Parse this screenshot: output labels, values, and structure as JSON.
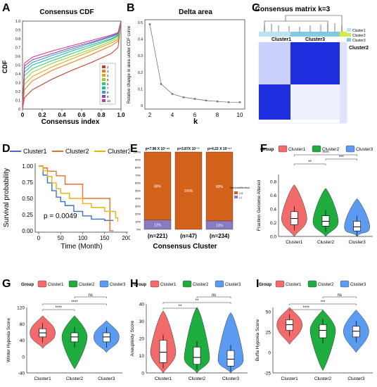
{
  "panels": {
    "A": {
      "letter": "A",
      "title": "Consensus CDF",
      "xlabel": "Consensus index",
      "ylabel": "CDF",
      "xticks": [
        "0",
        "0.2",
        "0.4",
        "0.6",
        "0.8",
        "1.0"
      ],
      "yticks": [
        "0",
        "0.1",
        "0.2",
        "0.3",
        "0.4",
        "0.5",
        "0.6",
        "0.7",
        "0.8",
        "0.9",
        "1.0"
      ]
    },
    "B": {
      "letter": "B",
      "title": "Delta area",
      "xlabel": "k",
      "ylabel": "Relative change in area under CDF curve",
      "xticks": [
        "2",
        "4",
        "6",
        "8",
        "10"
      ],
      "yticks": [
        "0",
        "0.1",
        "0.2",
        "0.3",
        "0.4",
        "0.5"
      ]
    },
    "C": {
      "letter": "C",
      "title": "Consensus matrix k=3",
      "label1": "Cluster1",
      "label2": "Cluster3",
      "label3": "Cluster2"
    },
    "D": {
      "letter": "D",
      "xlabel": "Time (Month)",
      "ylabel": "Survival probability",
      "pvalue": "p = 0.0049",
      "xticks": [
        "0",
        "50",
        "100",
        "150",
        "200"
      ],
      "yticks": [
        "0.00",
        "0.25",
        "0.50",
        "0.75",
        "1.00"
      ]
    },
    "E": {
      "letter": "E",
      "xlabel": "Consensus Cluster",
      "legend_title": "Immunofiltration",
      "yticks": [
        "0%",
        "10%",
        "20%",
        "30%",
        "40%",
        "50%",
        "60%",
        "70%",
        "80%",
        "90%",
        "100%"
      ]
    },
    "F": {
      "letter": "F",
      "ylabel": "Fraction Genome Altered",
      "yticks": [
        "0.0",
        "0.2",
        "0.4",
        "0.6",
        "0.8"
      ]
    },
    "G": {
      "letter": "G",
      "ylabel": "Winter Hypoxia Score",
      "yticks": [
        "-40",
        "0",
        "40",
        "80",
        "120"
      ]
    },
    "H": {
      "letter": "H",
      "ylabel": "Aneuploidy Score",
      "yticks": [
        "0",
        "10",
        "20",
        "30",
        "40"
      ]
    },
    "I": {
      "letter": "I",
      "ylabel": "Buffa Hypoxia Score",
      "yticks": [
        "-25",
        "0",
        "25",
        "50"
      ]
    }
  },
  "group_legend": {
    "title": "Group",
    "items": [
      "Cluster1",
      "Cluster2",
      "Cluster3"
    ]
  },
  "colors": {
    "cluster1": "#f26b6b",
    "cluster2": "#1fad3f",
    "cluster3": "#5b9cf2",
    "km1": "#3b6fc9",
    "km2": "#e8702a",
    "km3": "#e8b20f",
    "bar_top": "#d2611a",
    "bar_bottom": "#8a7ac0",
    "heat": "#1f2fe0"
  },
  "chart_data": [
    {
      "panel": "A",
      "type": "line",
      "title": "Consensus CDF",
      "xlabel": "Consensus index",
      "ylabel": "CDF",
      "xlim": [
        0,
        1
      ],
      "ylim": [
        0,
        1
      ],
      "legend": [
        "2",
        "3",
        "4",
        "5",
        "6",
        "7",
        "8",
        "9",
        "10"
      ],
      "legend_colors": [
        "#c0392b",
        "#e67e22",
        "#d4ac0d",
        "#9acd32",
        "#2ecc71",
        "#1abc9c",
        "#3498db",
        "#8e44ad",
        "#d63384"
      ],
      "series": [
        {
          "name": "2",
          "x": [
            0,
            0.02,
            0.1,
            0.3,
            0.5,
            0.7,
            0.9,
            0.97,
            1
          ],
          "y": [
            0,
            0.13,
            0.22,
            0.34,
            0.44,
            0.53,
            0.63,
            0.7,
            1
          ]
        },
        {
          "name": "3",
          "x": [
            0,
            0.02,
            0.1,
            0.3,
            0.5,
            0.7,
            0.9,
            0.97,
            1
          ],
          "y": [
            0,
            0.22,
            0.32,
            0.44,
            0.53,
            0.62,
            0.72,
            0.77,
            1
          ]
        },
        {
          "name": "4",
          "x": [
            0,
            0.02,
            0.1,
            0.3,
            0.5,
            0.7,
            0.9,
            0.97,
            1
          ],
          "y": [
            0,
            0.28,
            0.37,
            0.48,
            0.57,
            0.66,
            0.75,
            0.79,
            1
          ]
        },
        {
          "name": "5",
          "x": [
            0,
            0.02,
            0.1,
            0.3,
            0.5,
            0.7,
            0.9,
            0.97,
            1
          ],
          "y": [
            0,
            0.33,
            0.42,
            0.52,
            0.6,
            0.68,
            0.77,
            0.81,
            1
          ]
        },
        {
          "name": "6",
          "x": [
            0,
            0.02,
            0.1,
            0.3,
            0.5,
            0.7,
            0.9,
            0.97,
            1
          ],
          "y": [
            0,
            0.38,
            0.46,
            0.55,
            0.63,
            0.71,
            0.79,
            0.83,
            1
          ]
        },
        {
          "name": "7",
          "x": [
            0,
            0.02,
            0.1,
            0.3,
            0.5,
            0.7,
            0.9,
            0.97,
            1
          ],
          "y": [
            0,
            0.42,
            0.5,
            0.58,
            0.66,
            0.73,
            0.8,
            0.84,
            1
          ]
        },
        {
          "name": "8",
          "x": [
            0,
            0.02,
            0.1,
            0.3,
            0.5,
            0.7,
            0.9,
            0.97,
            1
          ],
          "y": [
            0,
            0.46,
            0.53,
            0.61,
            0.68,
            0.75,
            0.82,
            0.85,
            1
          ]
        },
        {
          "name": "9",
          "x": [
            0,
            0.02,
            0.1,
            0.3,
            0.5,
            0.7,
            0.9,
            0.97,
            1
          ],
          "y": [
            0,
            0.49,
            0.56,
            0.63,
            0.7,
            0.76,
            0.83,
            0.86,
            1
          ]
        },
        {
          "name": "10",
          "x": [
            0,
            0.02,
            0.1,
            0.3,
            0.5,
            0.7,
            0.9,
            0.97,
            1
          ],
          "y": [
            0,
            0.52,
            0.59,
            0.66,
            0.72,
            0.78,
            0.84,
            0.87,
            1
          ]
        }
      ]
    },
    {
      "panel": "B",
      "type": "line",
      "title": "Delta area",
      "xlabel": "k",
      "ylabel": "Relative change in area under CDF curve",
      "xlim": [
        2,
        10
      ],
      "ylim": [
        0,
        0.5
      ],
      "x": [
        2,
        3,
        4,
        5,
        6,
        7,
        8,
        9,
        10
      ],
      "y": [
        0.49,
        0.13,
        0.07,
        0.05,
        0.04,
        0.03,
        0.025,
        0.02,
        0.02
      ]
    },
    {
      "panel": "C",
      "type": "heatmap",
      "title": "Consensus matrix k=3",
      "legend": [
        "Cluster1",
        "Cluster2",
        "Cluster3"
      ]
    },
    {
      "panel": "D",
      "type": "line",
      "xlabel": "Time (Month)",
      "ylabel": "Survival probability",
      "legend": [
        "Cluster1",
        "Cluster2",
        "Cluster3"
      ],
      "annotation": "p = 0.0049",
      "xlim": [
        0,
        200
      ],
      "ylim": [
        0,
        1
      ],
      "series": [
        {
          "name": "Cluster1",
          "x": [
            0,
            10,
            20,
            30,
            40,
            50,
            60,
            80,
            100,
            120,
            150,
            170
          ],
          "y": [
            1,
            0.86,
            0.74,
            0.62,
            0.52,
            0.45,
            0.39,
            0.3,
            0.23,
            0.18,
            0.16,
            0.16
          ]
        },
        {
          "name": "Cluster2",
          "x": [
            0,
            10,
            20,
            40,
            60,
            100,
            150,
            160,
            162,
            170
          ],
          "y": [
            1,
            0.97,
            0.92,
            0.85,
            0.72,
            0.5,
            0.5,
            0.5,
            0.0,
            0.0
          ]
        },
        {
          "name": "Cluster3",
          "x": [
            0,
            10,
            20,
            30,
            40,
            50,
            70,
            100,
            120,
            150,
            175,
            180
          ],
          "y": [
            1,
            0.93,
            0.84,
            0.74,
            0.65,
            0.58,
            0.5,
            0.42,
            0.36,
            0.3,
            0.2,
            0.14
          ]
        }
      ]
    },
    {
      "panel": "E",
      "type": "bar",
      "xlabel": "Consensus Cluster",
      "legend": [
        "I-H",
        "I-L"
      ],
      "categories": [
        "(n=221)",
        "(n=47)",
        "(n=234)"
      ],
      "pvalues": [
        "p=7.96 X 10⁻⁴⁶",
        "p=3.87X 10⁻¹¹",
        "p=4.22 X 10⁻⁵³"
      ],
      "series": [
        {
          "name": "I-H",
          "values": [
            88,
            100,
            89
          ],
          "labels": [
            "88%",
            "100%",
            "89%"
          ]
        },
        {
          "name": "I-L",
          "values": [
            12,
            0,
            11
          ],
          "labels": [
            "12%",
            "",
            "11%"
          ]
        }
      ]
    },
    {
      "panel": "F",
      "type": "violin",
      "ylabel": "Fraction Genome Altered",
      "categories": [
        "Cluster1",
        "Cluster2",
        "Cluster3"
      ],
      "ylim": [
        0,
        0.9
      ],
      "medians": [
        0.26,
        0.22,
        0.14
      ],
      "q1": [
        0.17,
        0.15,
        0.08
      ],
      "q3": [
        0.36,
        0.3,
        0.22
      ],
      "min": [
        0.0,
        0.0,
        0.0
      ],
      "max": [
        0.75,
        0.7,
        0.55
      ],
      "significance": [
        "**",
        "****",
        "***"
      ]
    },
    {
      "panel": "G",
      "type": "violin",
      "ylabel": "Winter Hypoxia Score",
      "categories": [
        "Cluster1",
        "Cluster2",
        "Cluster3"
      ],
      "ylim": [
        -40,
        120
      ],
      "medians": [
        58,
        48,
        48
      ],
      "q1": [
        48,
        36,
        36
      ],
      "q3": [
        68,
        58,
        58
      ],
      "min": [
        20,
        -30,
        10
      ],
      "max": [
        100,
        100,
        88
      ],
      "significance": [
        "****",
        "****",
        "ns"
      ]
    },
    {
      "panel": "H",
      "type": "violin",
      "ylabel": "Aneuploidy Score",
      "categories": [
        "Cluster1",
        "Cluster2",
        "Cluster3"
      ],
      "ylim": [
        0,
        40
      ],
      "medians": [
        12,
        9,
        8
      ],
      "q1": [
        6,
        5,
        4
      ],
      "q3": [
        19,
        15,
        13
      ],
      "min": [
        0,
        0,
        0
      ],
      "max": [
        36,
        38,
        35
      ],
      "significance": [
        "**",
        "**",
        "ns"
      ]
    },
    {
      "panel": "I",
      "type": "violin",
      "ylabel": "Buffa Hypoxia Score",
      "categories": [
        "Cluster1",
        "Cluster2",
        "Cluster3"
      ],
      "ylim": [
        -25,
        55
      ],
      "medians": [
        34,
        27,
        26
      ],
      "q1": [
        27,
        18,
        19
      ],
      "q3": [
        40,
        34,
        32
      ],
      "min": [
        10,
        -22,
        0
      ],
      "max": [
        55,
        52,
        52
      ],
      "significance": [
        "****",
        "***",
        "ns"
      ]
    }
  ]
}
